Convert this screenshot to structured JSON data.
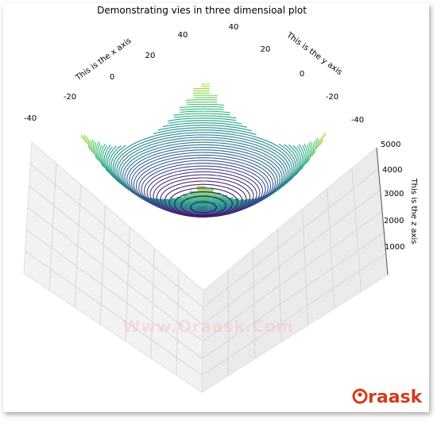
{
  "chart_data": {
    "type": "3d-contour",
    "title": "Demonstrating vies in three dimensioal plot",
    "xlabel": "This is the x axis",
    "ylabel": "This is the y axis",
    "zlabel": "This is the z axis",
    "x_ticks": [
      "-40",
      "-20",
      "0",
      "20",
      "40"
    ],
    "y_ticks": [
      "-40",
      "-20",
      "0",
      "20",
      "40"
    ],
    "z_ticks": [
      "1000",
      "2000",
      "3000",
      "4000",
      "5000"
    ],
    "xlim": [
      -50,
      50
    ],
    "ylim": [
      -50,
      50
    ],
    "zlim": [
      0,
      5000
    ],
    "surface": "z = x^2 + y^2",
    "levels": 50,
    "colormap": "viridis",
    "grid": true
  },
  "watermark": "Www.Oraask.Com",
  "brand": {
    "name": "raask",
    "color": "#d63a1d"
  }
}
